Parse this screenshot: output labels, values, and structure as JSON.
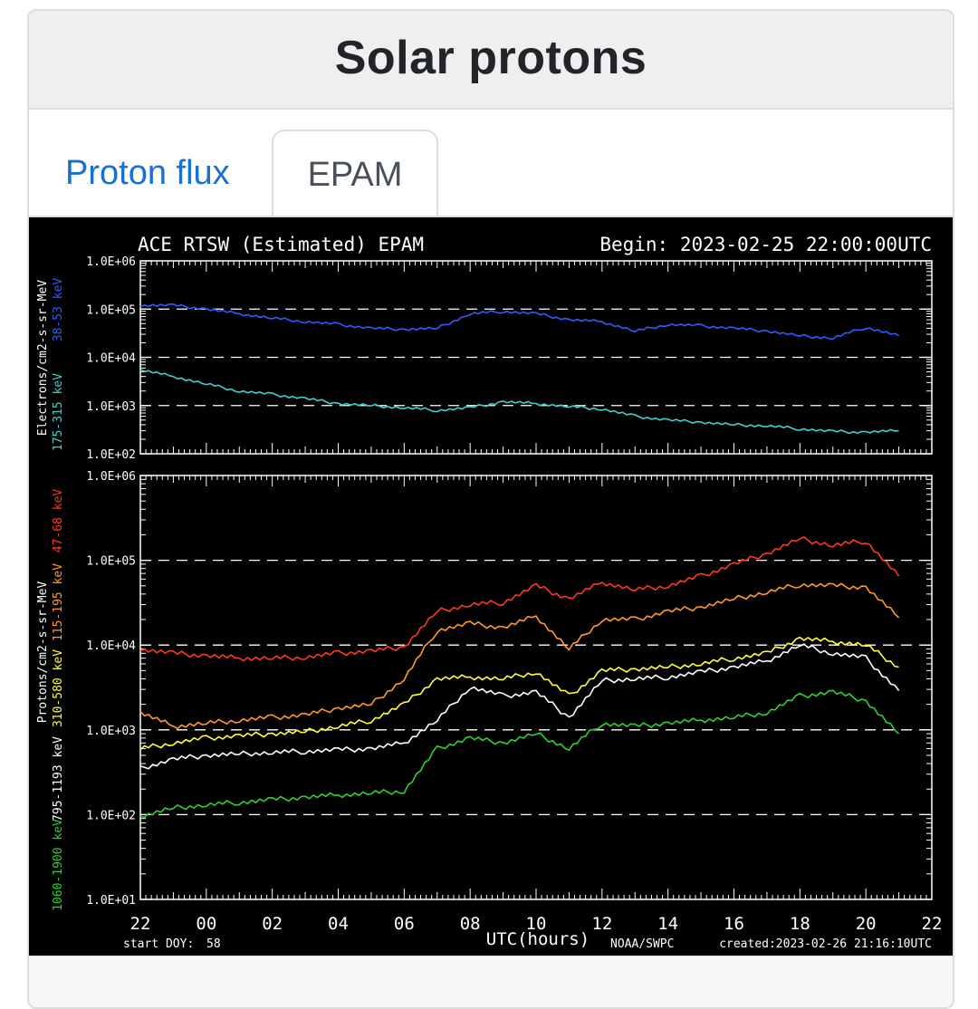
{
  "page": {
    "title": "Solar protons",
    "tabs": [
      {
        "label": "Proton flux",
        "active": false
      },
      {
        "label": "EPAM",
        "active": true
      }
    ]
  },
  "chart_data": [
    {
      "type": "line",
      "title": "ACE RTSW (Estimated) EPAM",
      "begin_label": "Begin: 2023-02-25 22:00:00UTC",
      "ylabel": "Electrons/cm2-s-sr-MeV",
      "y_scale": "log",
      "ylim": [
        100,
        1000000
      ],
      "yticks": [
        "1.0E+02",
        "1.0E+03",
        "1.0E+04",
        "1.0E+05",
        "1.0E+06"
      ],
      "grid": "dashed lines at 1.0E+03, 1.0E+04, 1.0E+05",
      "x_tick_labels": [
        "22",
        "00",
        "02",
        "04",
        "06",
        "08",
        "10",
        "12",
        "14",
        "16",
        "18",
        "20",
        "22"
      ],
      "x": [
        0,
        1,
        2,
        3,
        4,
        5,
        6,
        7,
        8,
        9,
        10,
        11,
        12,
        13,
        14,
        15,
        16,
        17,
        18,
        19,
        20,
        21,
        22,
        23
      ],
      "series": [
        {
          "name": "38-53 keV",
          "color": "#2f5cff",
          "values": [
            120000,
            120000,
            100000,
            80000,
            65000,
            55000,
            48000,
            40000,
            38000,
            40000,
            80000,
            90000,
            80000,
            60000,
            55000,
            35000,
            48000,
            45000,
            40000,
            35000,
            28000,
            25000,
            42000,
            28000
          ]
        },
        {
          "name": "175-315 keV",
          "color": "#3fd0d0",
          "values": [
            5500,
            4000,
            2800,
            2000,
            1700,
            1400,
            1100,
            1000,
            900,
            800,
            900,
            1200,
            1100,
            950,
            850,
            600,
            500,
            450,
            400,
            380,
            330,
            290,
            280,
            300
          ]
        }
      ]
    },
    {
      "type": "line",
      "ylabel": "Protons/cm2-s-sr-MeV",
      "y_scale": "log",
      "ylim": [
        10,
        1000000
      ],
      "yticks": [
        "1.0E+01",
        "1.0E+02",
        "1.0E+03",
        "1.0E+04",
        "1.0E+05",
        "1.0E+06"
      ],
      "grid": "dashed lines at 1.0E+02, 1.0E+03, 1.0E+04, 1.0E+05",
      "x_tick_labels": [
        "22",
        "00",
        "02",
        "04",
        "06",
        "08",
        "10",
        "12",
        "14",
        "16",
        "18",
        "20",
        "22"
      ],
      "xlabel": "UTC(hours)",
      "start_doy_label": "start DOY:",
      "start_doy": "58",
      "source": "NOAA/SWPC",
      "created": "created:2023-02-26 21:16:10UTC",
      "x": [
        0,
        1,
        2,
        3,
        4,
        5,
        6,
        7,
        8,
        9,
        10,
        11,
        12,
        13,
        14,
        15,
        16,
        17,
        18,
        19,
        20,
        21,
        22,
        23
      ],
      "series": [
        {
          "name": "47-68 keV",
          "color": "#ff3a1a",
          "values": [
            9000,
            8000,
            7500,
            7000,
            7000,
            7200,
            8000,
            8500,
            9500,
            25000,
            30000,
            32000,
            50000,
            35000,
            55000,
            45000,
            50000,
            65000,
            90000,
            120000,
            180000,
            150000,
            170000,
            65000
          ]
        },
        {
          "name": "115-195 keV",
          "color": "#ff9a2a",
          "values": [
            1600,
            1100,
            1200,
            1300,
            1400,
            1500,
            1800,
            2000,
            4000,
            15000,
            18000,
            16000,
            22000,
            9000,
            20000,
            20000,
            25000,
            28000,
            35000,
            42000,
            52000,
            50000,
            48000,
            21000
          ]
        },
        {
          "name": "310-580 keV",
          "color": "#ffff40",
          "values": [
            600,
            700,
            800,
            850,
            900,
            950,
            1100,
            1300,
            2000,
            4000,
            4200,
            4000,
            4800,
            2500,
            5000,
            5200,
            5500,
            6000,
            7000,
            8000,
            12000,
            11000,
            10000,
            5500
          ]
        },
        {
          "name": "795-1193 keV",
          "color": "#ffffff",
          "values": [
            350,
            450,
            500,
            520,
            540,
            560,
            580,
            600,
            700,
            1300,
            3200,
            2500,
            2800,
            1400,
            3800,
            4000,
            4200,
            4800,
            5500,
            6500,
            10000,
            8000,
            7000,
            2900
          ]
        },
        {
          "name": "1060-1900 keV",
          "color": "#30d030",
          "values": [
            95,
            120,
            130,
            140,
            150,
            160,
            170,
            180,
            190,
            600,
            800,
            700,
            900,
            600,
            1200,
            1100,
            1200,
            1300,
            1400,
            1600,
            2500,
            2800,
            2200,
            900
          ]
        }
      ]
    }
  ]
}
